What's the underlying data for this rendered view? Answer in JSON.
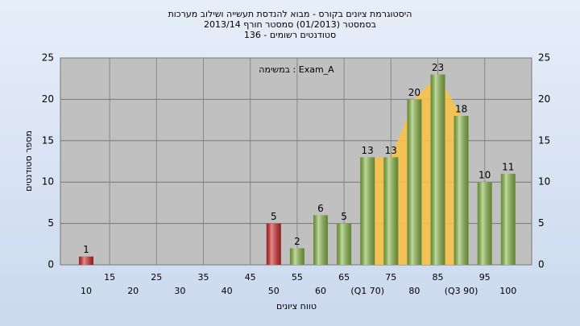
{
  "chart_data": {
    "type": "bar",
    "title": [
      "היסטוגרמת ציונים בקורס - מבוא להנדסת תעשייה ושילוב מערכות",
      "בסמסטר (01/2013)  סמסטר חורף 2013/14",
      "סטודנטים רשומים - 136"
    ],
    "annotation": "במשימה : Exam_A",
    "y_label": "מספר סטודנטים",
    "x_label": "טווח ציונים",
    "categories": [
      "10",
      "15",
      "20",
      "25",
      "30",
      "35",
      "40",
      "45",
      "50",
      "55",
      "60",
      "65",
      "(Q1 70)",
      "75",
      "80",
      "85",
      "(Q3 90)",
      "95",
      "100"
    ],
    "values": [
      1,
      0,
      0,
      0,
      0,
      0,
      0,
      0,
      5,
      2,
      6,
      5,
      13,
      13,
      20,
      23,
      18,
      10,
      11
    ],
    "colors": [
      "#d42a2a",
      "#8cbc4c",
      "#8cbc4c",
      "#8cbc4c",
      "#8cbc4c",
      "#8cbc4c",
      "#8cbc4c",
      "#8cbc4c",
      "#d42a2a",
      "#8cbc4c",
      "#8cbc4c",
      "#8cbc4c",
      "#8cbc4c",
      "#8cbc4c",
      "#8cbc4c",
      "#8cbc4c",
      "#8cbc4c",
      "#8cbc4c",
      "#8cbc4c"
    ],
    "area_color": "#f7c24a",
    "ylim": [
      0,
      25
    ],
    "yticks": [
      0,
      5,
      10,
      15,
      20,
      25
    ],
    "grid": true
  }
}
